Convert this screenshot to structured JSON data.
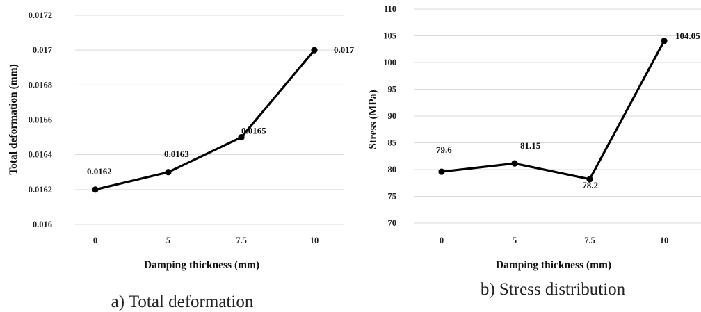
{
  "chart_data": [
    {
      "type": "line",
      "title": "",
      "caption": "a) Total deformation",
      "xlabel": "Damping thickness (mm)",
      "ylabel": "Total deformation (mm)",
      "categories": [
        "0",
        "5",
        "7.5",
        "10"
      ],
      "ylim": [
        0.016,
        0.0172
      ],
      "yticks": [
        "0.016",
        "0.0162",
        "0.0164",
        "0.0166",
        "0.0168",
        "0.017",
        "0.0172"
      ],
      "grid": true,
      "legend": "none",
      "series": [
        {
          "values": [
            0.0162,
            0.0163,
            0.0165,
            0.017
          ],
          "labels": [
            "0.0162",
            "0.0163",
            "0.0165",
            "0.017"
          ]
        }
      ]
    },
    {
      "type": "line",
      "title": "",
      "caption": "b) Stress distribution",
      "xlabel": "Damping thickness (mm)",
      "ylabel": "Stress (MPa)",
      "categories": [
        "0",
        "5",
        "7.5",
        "10"
      ],
      "ylim": [
        70,
        110
      ],
      "yticks": [
        "70",
        "75",
        "80",
        "85",
        "90",
        "95",
        "100",
        "105",
        "110"
      ],
      "grid": true,
      "legend": "none",
      "series": [
        {
          "values": [
            79.6,
            81.15,
            78.2,
            104.05
          ],
          "labels": [
            "79.6",
            "81.15",
            "78.2",
            "104.05"
          ]
        }
      ]
    }
  ]
}
